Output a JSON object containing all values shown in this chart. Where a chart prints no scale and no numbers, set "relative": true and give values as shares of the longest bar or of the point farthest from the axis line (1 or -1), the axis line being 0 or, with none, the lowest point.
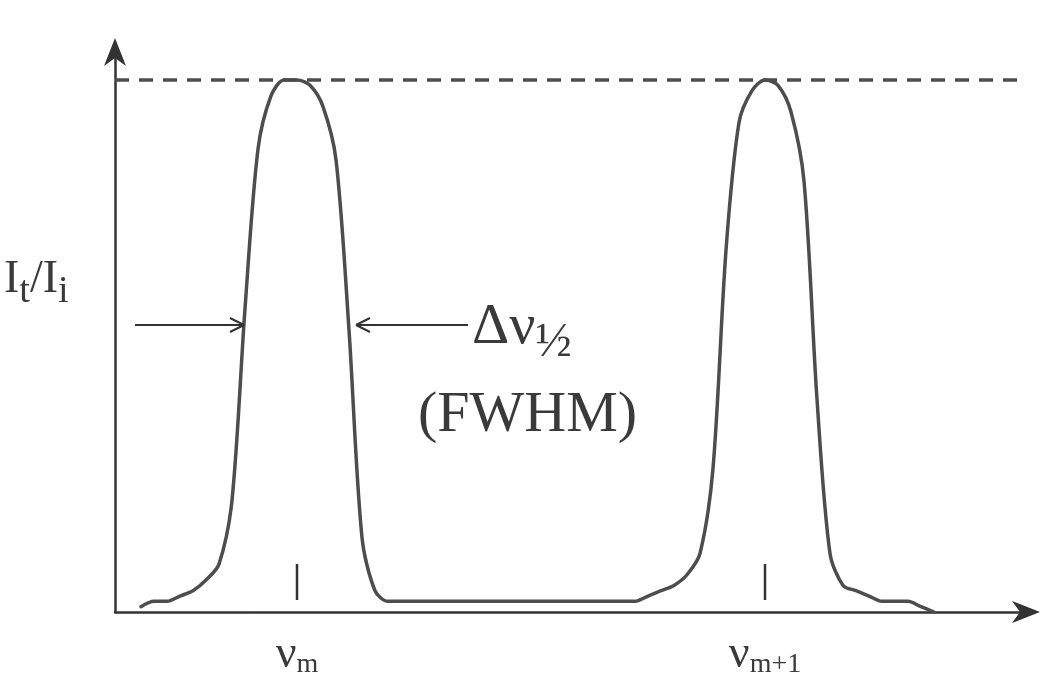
{
  "chart_data": {
    "type": "line",
    "relative": true,
    "ylabel": "I$_{t}$/I$_{i}$",
    "categories": [
      null,
      null,
      null,
      null,
      null,
      null,
      null,
      null,
      null,
      null,
      null,
      null,
      null,
      null,
      "ν$_{m}$",
      null,
      null,
      null,
      null,
      null,
      null,
      null,
      null,
      null,
      null,
      null,
      null,
      null,
      null,
      null,
      null,
      null,
      null,
      null,
      null,
      null,
      null,
      null,
      null,
      null,
      null,
      null,
      null,
      null,
      null,
      null,
      null,
      null,
      null,
      null,
      "ν$_{m+1}$",
      null,
      null,
      null,
      null,
      null,
      null,
      null,
      null,
      null,
      null,
      null,
      null,
      null,
      null,
      null,
      null,
      null,
      null,
      null,
      null
    ],
    "series": [
      {
        "color": "#4d4d4d",
        "values": [
          null,
          null,
          0.01,
          0.02,
          0.02,
          0.03,
          0.04,
          0.06,
          0.09,
          0.21,
          0.57,
          0.87,
          0.97,
          1.0,
          1.0,
          0.99,
          0.95,
          0.85,
          0.53,
          0.14,
          0.04,
          0.02,
          0.02,
          0.02,
          0.02,
          0.02,
          0.02,
          0.02,
          0.02,
          0.02,
          0.02,
          0.02,
          0.02,
          0.02,
          0.02,
          0.02,
          0.02,
          0.02,
          0.02,
          0.02,
          0.02,
          0.03,
          0.04,
          0.05,
          0.07,
          0.11,
          0.27,
          0.68,
          0.92,
          0.98,
          1.0,
          0.99,
          0.94,
          0.81,
          0.4,
          0.11,
          0.05,
          0.04,
          0.03,
          0.02,
          0.02,
          0.02,
          0.01,
          0.0,
          null,
          null,
          null,
          null,
          null,
          null,
          null
        ]
      }
    ],
    "ref_lines": [
      {
        "axis": "y",
        "value": 1,
        "color": "#4d4d4d",
        "line_style": "dashed"
      }
    ],
    "annotations": [
      "Δν$_{½}$",
      "(FWHM)"
    ],
    "marker": "none",
    "line_style": "solid",
    "grid": false
  }
}
